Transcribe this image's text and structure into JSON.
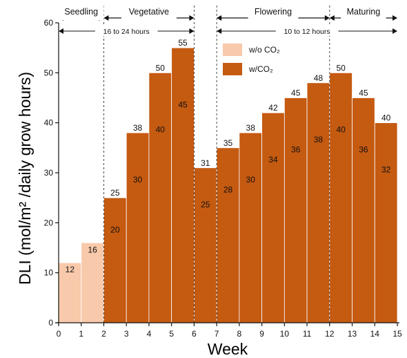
{
  "chart_data": {
    "type": "bar",
    "xlabel": "Week",
    "ylabel": "DLI (mol/m² /daily grow hours)",
    "ylim": [
      0,
      60
    ],
    "yticks": [
      0,
      10,
      20,
      30,
      40,
      50,
      60
    ],
    "xlim": [
      0,
      15
    ],
    "xticks": [
      0,
      1,
      2,
      3,
      4,
      5,
      6,
      7,
      8,
      9,
      10,
      11,
      12,
      13,
      14,
      15
    ],
    "grid": false,
    "legend_position": "top-right",
    "series": [
      {
        "name": "w/o CO₂",
        "color": "#f8c9aa",
        "bars": [
          {
            "x0": 0,
            "x1": 1,
            "value": 12
          },
          {
            "x0": 1,
            "x1": 2,
            "value": 16
          },
          {
            "x0": 2,
            "x1": 3,
            "value": 20
          },
          {
            "x0": 3,
            "x1": 4,
            "value": 30
          },
          {
            "x0": 4,
            "x1": 5,
            "value": 40
          },
          {
            "x0": 5,
            "x1": 6,
            "value": 45
          },
          {
            "x0": 6,
            "x1": 7,
            "value": 25
          },
          {
            "x0": 7,
            "x1": 8,
            "value": 28
          },
          {
            "x0": 8,
            "x1": 9,
            "value": 30
          },
          {
            "x0": 9,
            "x1": 10,
            "value": 34
          },
          {
            "x0": 10,
            "x1": 11,
            "value": 36
          },
          {
            "x0": 11,
            "x1": 12,
            "value": 38
          },
          {
            "x0": 12,
            "x1": 13,
            "value": 40
          },
          {
            "x0": 13,
            "x1": 14,
            "value": 36
          },
          {
            "x0": 14,
            "x1": 15,
            "value": 32
          }
        ]
      },
      {
        "name": "w/CO₂",
        "color": "#c55a11",
        "bars": [
          {
            "x0": 2,
            "x1": 3,
            "value": 25
          },
          {
            "x0": 3,
            "x1": 4,
            "value": 38
          },
          {
            "x0": 4,
            "x1": 5,
            "value": 50
          },
          {
            "x0": 5,
            "x1": 6,
            "value": 55
          },
          {
            "x0": 6,
            "x1": 7,
            "value": 31
          },
          {
            "x0": 7,
            "x1": 8,
            "value": 35
          },
          {
            "x0": 8,
            "x1": 9,
            "value": 38
          },
          {
            "x0": 9,
            "x1": 10,
            "value": 42
          },
          {
            "x0": 10,
            "x1": 11,
            "value": 45
          },
          {
            "x0": 11,
            "x1": 12,
            "value": 48
          },
          {
            "x0": 12,
            "x1": 13,
            "value": 50
          },
          {
            "x0": 13,
            "x1": 14,
            "value": 45
          },
          {
            "x0": 14,
            "x1": 15,
            "value": 40
          }
        ]
      }
    ],
    "phases": [
      {
        "label": "Seedling",
        "start": 0,
        "end": 2
      },
      {
        "label": "Vegetative",
        "start": 2,
        "end": 6
      },
      {
        "label": "Flowering",
        "start": 7,
        "end": 12
      },
      {
        "label": "Maturing",
        "start": 12,
        "end": 15
      }
    ],
    "phase_dividers": [
      2,
      6,
      7,
      12
    ],
    "durations": [
      {
        "label": "16 to 24 hours",
        "start": 0,
        "end": 6
      },
      {
        "label": "10 to 12 hours",
        "start": 7,
        "end": 15
      }
    ]
  }
}
